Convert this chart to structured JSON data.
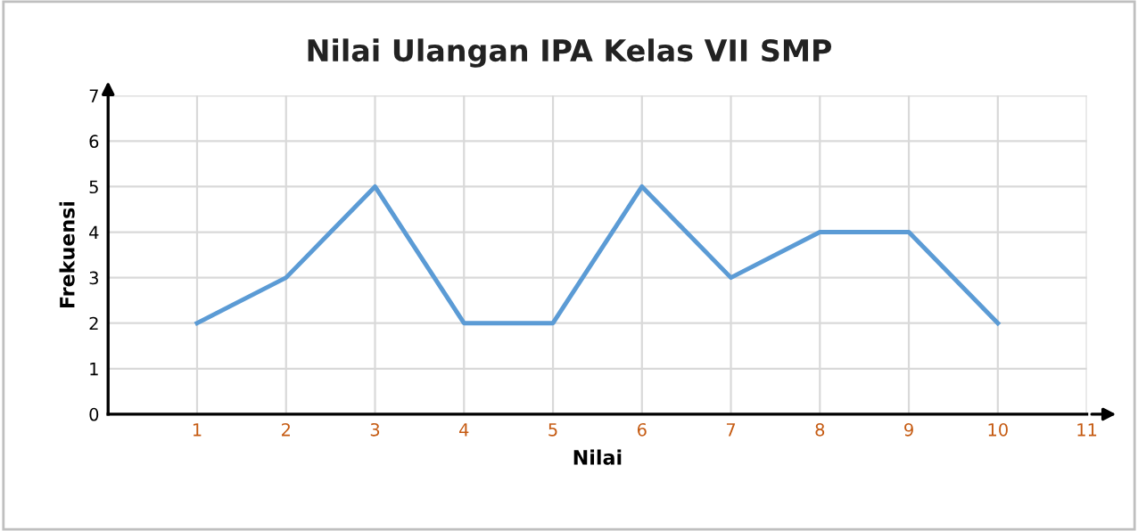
{
  "chart_data": {
    "type": "line",
    "title": "Nilai Ulangan IPA Kelas VII SMP",
    "xlabel": "Nilai",
    "ylabel": "Frekuensi",
    "x": [
      1,
      2,
      3,
      4,
      5,
      6,
      7,
      8,
      9,
      10
    ],
    "series": [
      {
        "color": "#5b9bd5",
        "values": [
          2,
          3,
          5,
          2,
          2,
          5,
          3,
          4,
          4,
          2
        ]
      }
    ],
    "xlim": [
      0,
      11
    ],
    "xticks": [
      1,
      2,
      3,
      4,
      5,
      6,
      7,
      8,
      9,
      10,
      11
    ],
    "ylim": [
      0,
      7
    ],
    "yticks": [
      0,
      1,
      2,
      3,
      4,
      5,
      6,
      7
    ],
    "grid": true,
    "marker": "none",
    "line_style": "solid",
    "legend": false
  }
}
